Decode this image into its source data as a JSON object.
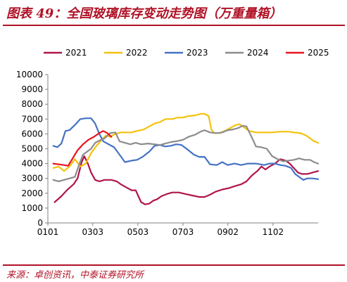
{
  "header": {
    "title": "图表 49：全国玻璃库存变动走势图（万重量箱）"
  },
  "footer": {
    "source": "来源：卓创资讯，中泰证券研究所"
  },
  "chart_data": {
    "type": "line",
    "title": "",
    "xlabel": "",
    "ylabel": "",
    "legend_position": "top",
    "grid": false,
    "ylim": [
      0,
      10000
    ],
    "yticks": [
      0,
      1000,
      2000,
      3000,
      4000,
      5000,
      6000,
      7000,
      8000,
      9000,
      10000
    ],
    "xlim": [
      0,
      1
    ],
    "xticks": [
      {
        "label": "0101",
        "x": 0.0
      },
      {
        "label": "0303",
        "x": 0.166
      },
      {
        "label": "0503",
        "x": 0.333
      },
      {
        "label": "0703",
        "x": 0.5
      },
      {
        "label": "0902",
        "x": 0.666
      },
      {
        "label": "1102",
        "x": 0.833
      }
    ],
    "series": [
      {
        "name": "2021",
        "color": "#b0154a",
        "points": [
          [
            0.025,
            1400
          ],
          [
            0.05,
            1800
          ],
          [
            0.07,
            2200
          ],
          [
            0.095,
            2600
          ],
          [
            0.11,
            3000
          ],
          [
            0.125,
            4100
          ],
          [
            0.135,
            4500
          ],
          [
            0.148,
            4000
          ],
          [
            0.16,
            3400
          ],
          [
            0.175,
            2900
          ],
          [
            0.19,
            2800
          ],
          [
            0.21,
            2900
          ],
          [
            0.235,
            2900
          ],
          [
            0.255,
            2800
          ],
          [
            0.27,
            2600
          ],
          [
            0.29,
            2400
          ],
          [
            0.31,
            2200
          ],
          [
            0.325,
            2200
          ],
          [
            0.335,
            1800
          ],
          [
            0.345,
            1400
          ],
          [
            0.36,
            1250
          ],
          [
            0.375,
            1300
          ],
          [
            0.39,
            1500
          ],
          [
            0.405,
            1600
          ],
          [
            0.42,
            1800
          ],
          [
            0.44,
            1950
          ],
          [
            0.46,
            2050
          ],
          [
            0.485,
            2050
          ],
          [
            0.51,
            1950
          ],
          [
            0.535,
            1850
          ],
          [
            0.56,
            1750
          ],
          [
            0.58,
            1750
          ],
          [
            0.6,
            1900
          ],
          [
            0.62,
            2100
          ],
          [
            0.645,
            2250
          ],
          [
            0.67,
            2350
          ],
          [
            0.695,
            2500
          ],
          [
            0.715,
            2600
          ],
          [
            0.735,
            2800
          ],
          [
            0.755,
            3200
          ],
          [
            0.775,
            3500
          ],
          [
            0.79,
            3800
          ],
          [
            0.805,
            3600
          ],
          [
            0.82,
            3800
          ],
          [
            0.84,
            4000
          ],
          [
            0.86,
            4300
          ],
          [
            0.88,
            4200
          ],
          [
            0.895,
            4000
          ],
          [
            0.91,
            3700
          ],
          [
            0.925,
            3400
          ],
          [
            0.94,
            3300
          ],
          [
            0.96,
            3300
          ],
          [
            0.98,
            3400
          ],
          [
            1.0,
            3500
          ]
        ]
      },
      {
        "name": "2022",
        "color": "#f4c20d",
        "points": [
          [
            0.02,
            3700
          ],
          [
            0.04,
            3800
          ],
          [
            0.06,
            3500
          ],
          [
            0.08,
            3800
          ],
          [
            0.1,
            4300
          ],
          [
            0.12,
            3800
          ],
          [
            0.14,
            4000
          ],
          [
            0.16,
            4700
          ],
          [
            0.18,
            5200
          ],
          [
            0.2,
            5600
          ],
          [
            0.215,
            5900
          ],
          [
            0.23,
            5800
          ],
          [
            0.25,
            6000
          ],
          [
            0.27,
            6100
          ],
          [
            0.29,
            6100
          ],
          [
            0.31,
            6100
          ],
          [
            0.33,
            6200
          ],
          [
            0.355,
            6300
          ],
          [
            0.375,
            6500
          ],
          [
            0.395,
            6700
          ],
          [
            0.415,
            6800
          ],
          [
            0.435,
            7000
          ],
          [
            0.46,
            7000
          ],
          [
            0.48,
            7100
          ],
          [
            0.5,
            7100
          ],
          [
            0.52,
            7200
          ],
          [
            0.545,
            7250
          ],
          [
            0.565,
            7350
          ],
          [
            0.58,
            7350
          ],
          [
            0.595,
            7200
          ],
          [
            0.605,
            6300
          ],
          [
            0.615,
            6050
          ],
          [
            0.635,
            6050
          ],
          [
            0.655,
            6200
          ],
          [
            0.675,
            6400
          ],
          [
            0.695,
            6600
          ],
          [
            0.71,
            6650
          ],
          [
            0.725,
            6450
          ],
          [
            0.745,
            6200
          ],
          [
            0.77,
            6100
          ],
          [
            0.8,
            6100
          ],
          [
            0.83,
            6100
          ],
          [
            0.86,
            6150
          ],
          [
            0.89,
            6150
          ],
          [
            0.91,
            6100
          ],
          [
            0.935,
            6050
          ],
          [
            0.955,
            5900
          ],
          [
            0.97,
            5700
          ],
          [
            0.985,
            5500
          ],
          [
            1.0,
            5400
          ]
        ]
      },
      {
        "name": "2023",
        "color": "#4472c4",
        "points": [
          [
            0.02,
            5200
          ],
          [
            0.035,
            5100
          ],
          [
            0.05,
            5350
          ],
          [
            0.065,
            6200
          ],
          [
            0.08,
            6250
          ],
          [
            0.1,
            6600
          ],
          [
            0.12,
            7000
          ],
          [
            0.14,
            7050
          ],
          [
            0.16,
            7050
          ],
          [
            0.175,
            6700
          ],
          [
            0.19,
            6000
          ],
          [
            0.205,
            5500
          ],
          [
            0.225,
            5300
          ],
          [
            0.245,
            5100
          ],
          [
            0.265,
            4600
          ],
          [
            0.285,
            4100
          ],
          [
            0.31,
            4200
          ],
          [
            0.33,
            4250
          ],
          [
            0.35,
            4450
          ],
          [
            0.375,
            4800
          ],
          [
            0.395,
            5200
          ],
          [
            0.415,
            5250
          ],
          [
            0.435,
            5150
          ],
          [
            0.455,
            5200
          ],
          [
            0.475,
            5300
          ],
          [
            0.495,
            5250
          ],
          [
            0.52,
            4900
          ],
          [
            0.54,
            4600
          ],
          [
            0.56,
            4450
          ],
          [
            0.58,
            4450
          ],
          [
            0.6,
            3950
          ],
          [
            0.625,
            3900
          ],
          [
            0.645,
            4100
          ],
          [
            0.665,
            3900
          ],
          [
            0.69,
            4000
          ],
          [
            0.715,
            3900
          ],
          [
            0.74,
            4000
          ],
          [
            0.77,
            4000
          ],
          [
            0.8,
            3900
          ],
          [
            0.82,
            4000
          ],
          [
            0.84,
            4000
          ],
          [
            0.86,
            3900
          ],
          [
            0.88,
            3850
          ],
          [
            0.9,
            3700
          ],
          [
            0.915,
            3300
          ],
          [
            0.93,
            3100
          ],
          [
            0.945,
            2900
          ],
          [
            0.96,
            3000
          ],
          [
            0.98,
            3000
          ],
          [
            1.0,
            2950
          ]
        ]
      },
      {
        "name": "2024",
        "color": "#8c8c8c",
        "points": [
          [
            0.02,
            2900
          ],
          [
            0.04,
            2800
          ],
          [
            0.06,
            2900
          ],
          [
            0.08,
            3000
          ],
          [
            0.1,
            3100
          ],
          [
            0.115,
            3900
          ],
          [
            0.13,
            4600
          ],
          [
            0.145,
            4800
          ],
          [
            0.16,
            5000
          ],
          [
            0.175,
            5400
          ],
          [
            0.19,
            5550
          ],
          [
            0.21,
            5700
          ],
          [
            0.23,
            6050
          ],
          [
            0.25,
            6100
          ],
          [
            0.265,
            5500
          ],
          [
            0.285,
            5400
          ],
          [
            0.305,
            5300
          ],
          [
            0.325,
            5400
          ],
          [
            0.345,
            5300
          ],
          [
            0.37,
            5350
          ],
          [
            0.395,
            5300
          ],
          [
            0.415,
            5250
          ],
          [
            0.435,
            5350
          ],
          [
            0.455,
            5450
          ],
          [
            0.475,
            5500
          ],
          [
            0.5,
            5600
          ],
          [
            0.52,
            5800
          ],
          [
            0.545,
            5950
          ],
          [
            0.565,
            6150
          ],
          [
            0.58,
            6250
          ],
          [
            0.6,
            6100
          ],
          [
            0.625,
            6050
          ],
          [
            0.645,
            6100
          ],
          [
            0.665,
            6250
          ],
          [
            0.685,
            6300
          ],
          [
            0.705,
            6400
          ],
          [
            0.72,
            6550
          ],
          [
            0.735,
            6500
          ],
          [
            0.755,
            5750
          ],
          [
            0.77,
            5150
          ],
          [
            0.79,
            5100
          ],
          [
            0.81,
            5000
          ],
          [
            0.83,
            4500
          ],
          [
            0.85,
            4300
          ],
          [
            0.87,
            4150
          ],
          [
            0.89,
            4200
          ],
          [
            0.91,
            4250
          ],
          [
            0.93,
            4350
          ],
          [
            0.95,
            4250
          ],
          [
            0.97,
            4250
          ],
          [
            0.985,
            4100
          ],
          [
            1.0,
            4000
          ]
        ]
      },
      {
        "name": "2025",
        "color": "#e8141e",
        "points": [
          [
            0.02,
            4000
          ],
          [
            0.04,
            3950
          ],
          [
            0.06,
            3900
          ],
          [
            0.075,
            3850
          ],
          [
            0.09,
            4300
          ],
          [
            0.11,
            4900
          ],
          [
            0.13,
            5300
          ],
          [
            0.15,
            5600
          ],
          [
            0.17,
            5800
          ],
          [
            0.19,
            6050
          ],
          [
            0.205,
            6200
          ],
          [
            0.22,
            6050
          ],
          [
            0.235,
            5800
          ]
        ]
      }
    ]
  }
}
